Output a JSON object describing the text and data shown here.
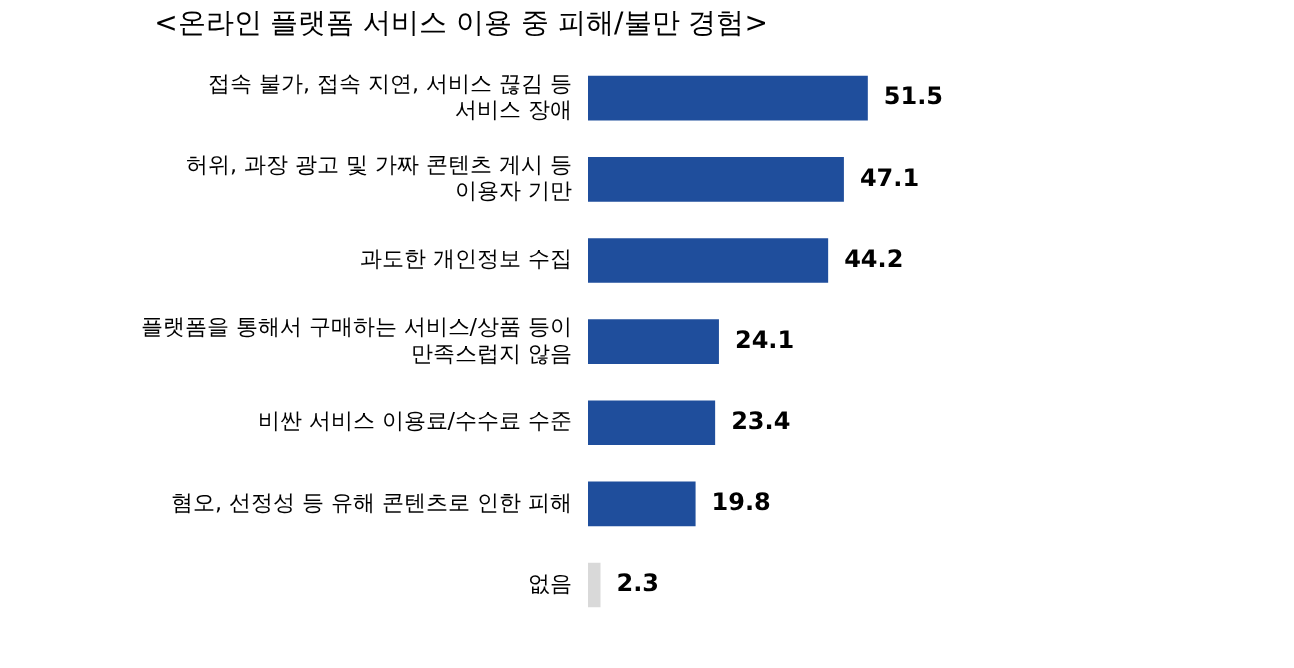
{
  "chart_data": {
    "type": "bar",
    "orientation": "horizontal",
    "title": "<온라인 플랫폼 서비스 이용 중 피해/불만 경험>",
    "categories": [
      "접속 불가, 접속 지연, 서비스 끊김 등\n서비스 장애",
      "허위, 과장 광고 및 가짜 콘텐츠 게시 등\n이용자 기만",
      "과도한 개인정보 수집",
      "플랫폼을 통해서 구매하는 서비스/상품 등이\n만족스럽지 않음",
      "비싼 서비스 이용료/수수료 수준",
      "혐오, 선정성 등 유해 콘텐츠로 인한 피해",
      "없음"
    ],
    "values": [
      51.5,
      47.1,
      44.2,
      24.1,
      23.4,
      19.8,
      2.3
    ],
    "colors": [
      "#1f4e9c",
      "#1f4e9c",
      "#1f4e9c",
      "#1f4e9c",
      "#1f4e9c",
      "#1f4e9c",
      "#d9d9d9"
    ],
    "data_labels": true
  }
}
